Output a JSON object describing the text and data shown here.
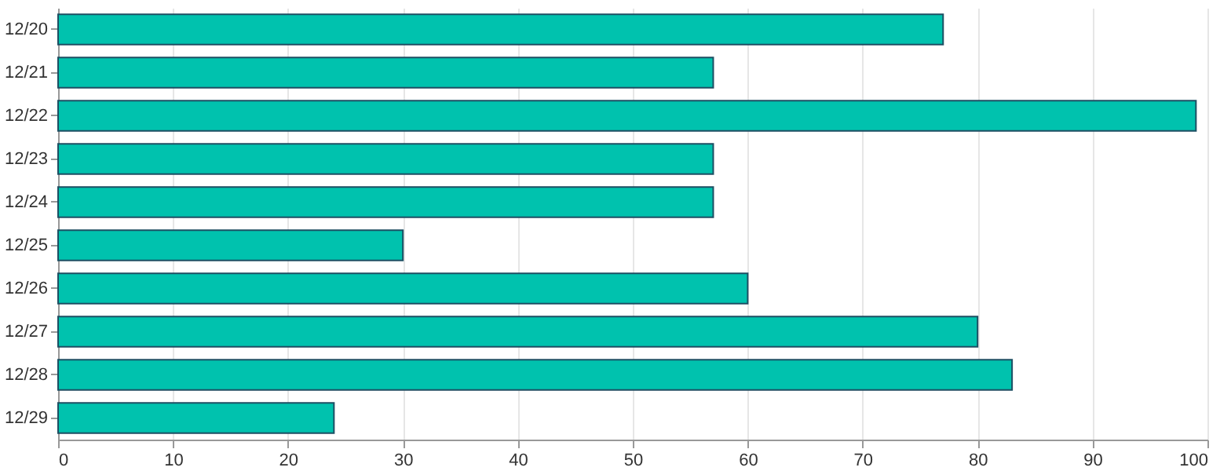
{
  "chart_data": {
    "type": "bar",
    "orientation": "horizontal",
    "categories": [
      "12/20",
      "12/21",
      "12/22",
      "12/23",
      "12/24",
      "12/25",
      "12/26",
      "12/27",
      "12/28",
      "12/29"
    ],
    "values": [
      77,
      57,
      99,
      57,
      57,
      30,
      60,
      80,
      83,
      24
    ],
    "color": "#00c2ae",
    "xlim": [
      0,
      100
    ],
    "xticks": [
      0,
      10,
      20,
      30,
      40,
      50,
      60,
      70,
      80,
      90,
      100
    ],
    "grid": "x"
  }
}
